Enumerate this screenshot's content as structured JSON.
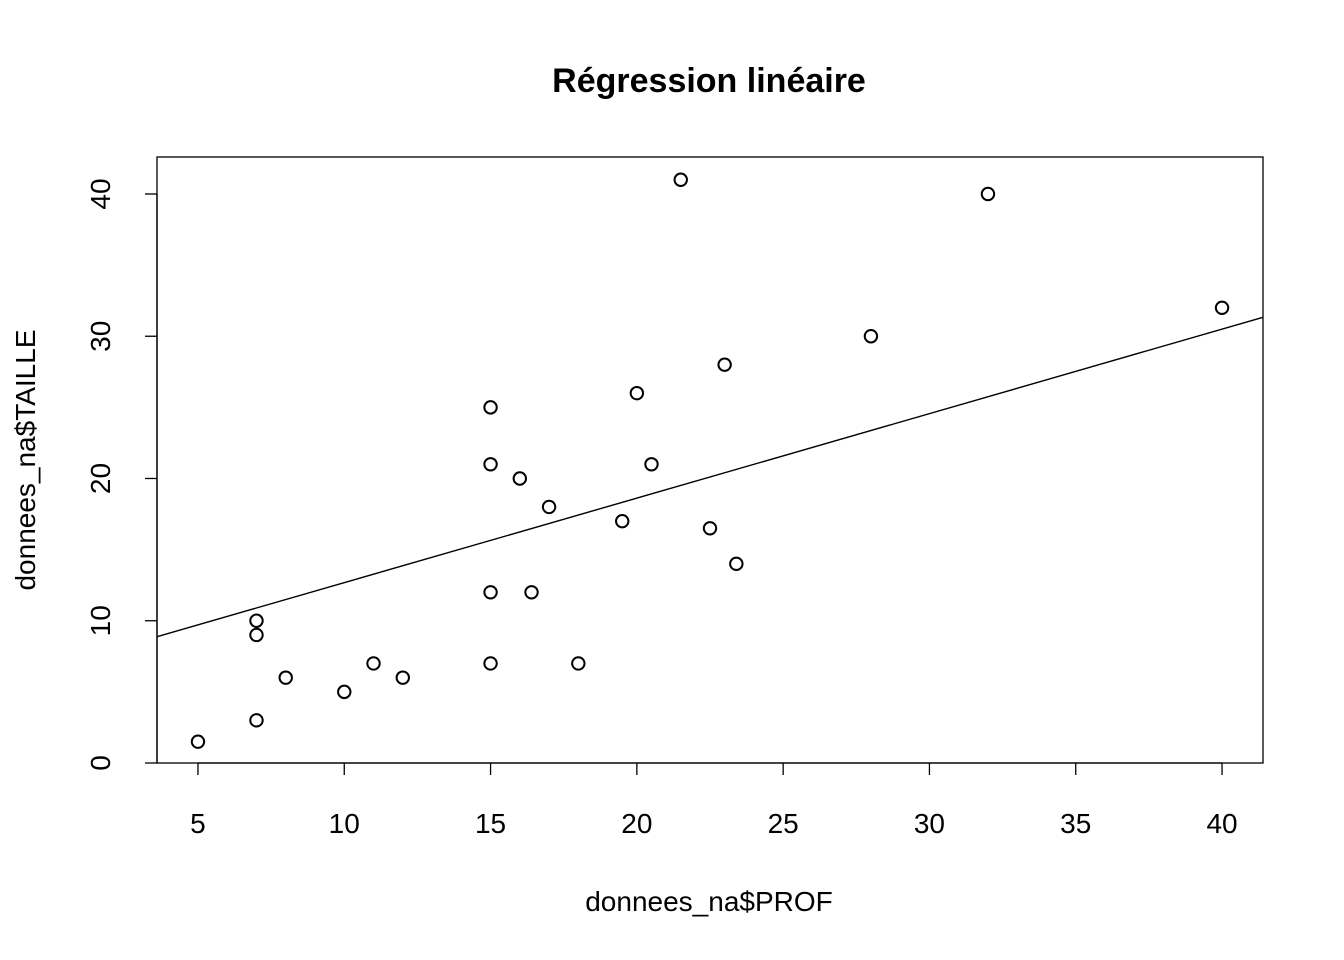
{
  "chart_data": {
    "type": "scatter",
    "title": "Régression linéaire",
    "xlabel": "donnees_na$PROF",
    "ylabel": "donnees_na$TAILLE",
    "xlim": [
      3.6,
      41.4
    ],
    "ylim": [
      0,
      42.6
    ],
    "x_ticks": [
      5,
      10,
      15,
      20,
      25,
      30,
      35,
      40
    ],
    "y_ticks": [
      0,
      10,
      20,
      30,
      40
    ],
    "grid": false,
    "points": [
      {
        "x": 5,
        "y": 1.5
      },
      {
        "x": 7,
        "y": 3
      },
      {
        "x": 7,
        "y": 9
      },
      {
        "x": 7,
        "y": 10
      },
      {
        "x": 8,
        "y": 6
      },
      {
        "x": 10,
        "y": 5
      },
      {
        "x": 11,
        "y": 7
      },
      {
        "x": 12,
        "y": 6
      },
      {
        "x": 15,
        "y": 7
      },
      {
        "x": 15,
        "y": 12
      },
      {
        "x": 15,
        "y": 21
      },
      {
        "x": 15,
        "y": 25
      },
      {
        "x": 16,
        "y": 20
      },
      {
        "x": 16.4,
        "y": 12
      },
      {
        "x": 17,
        "y": 18
      },
      {
        "x": 18,
        "y": 7
      },
      {
        "x": 19.5,
        "y": 17
      },
      {
        "x": 20,
        "y": 26
      },
      {
        "x": 20.5,
        "y": 21
      },
      {
        "x": 21.5,
        "y": 41
      },
      {
        "x": 22.5,
        "y": 16.5
      },
      {
        "x": 23,
        "y": 28
      },
      {
        "x": 23.4,
        "y": 14
      },
      {
        "x": 28,
        "y": 30
      },
      {
        "x": 32,
        "y": 40
      },
      {
        "x": 40,
        "y": 32
      }
    ],
    "regression_line": {
      "intercept": 6.74,
      "slope": 0.594
    }
  }
}
